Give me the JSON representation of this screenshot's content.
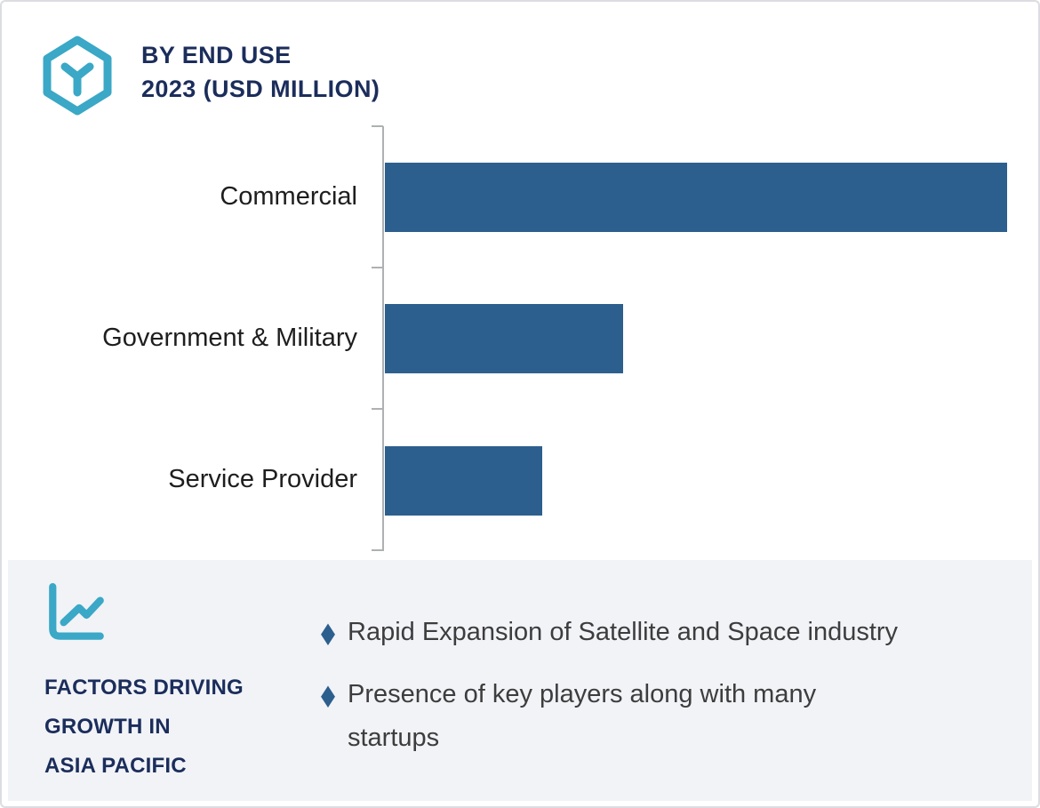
{
  "header": {
    "title_line1": "BY END USE",
    "title_line2": "2023 (USD MILLION)"
  },
  "chart_data": {
    "type": "bar",
    "orientation": "horizontal",
    "title": "BY END USE 2023 (USD MILLION)",
    "categories": [
      "Commercial",
      "Government & Military",
      "Service Provider"
    ],
    "values_pct_of_max": [
      100,
      38.3,
      25.3
    ],
    "note": "no numeric axis or data labels shown; values estimated as percent of longest bar",
    "xlabel": "",
    "ylabel": "",
    "legend": false,
    "grid": false,
    "bar_color": "#2d5f8e"
  },
  "factors_panel": {
    "heading_lines": [
      "FACTORS DRIVING",
      "GROWTH IN",
      "ASIA PACIFIC"
    ],
    "items": [
      "Rapid Expansion of Satellite and Space industry",
      "Presence of key players along with many\nstartups"
    ]
  },
  "colors": {
    "bar": "#2d5f8e",
    "navy_text": "#1b2d5b",
    "teal_icon": "#3aa8c6",
    "panel_bg": "#f1f3f7",
    "bullet_diamond": "#2d5f8e",
    "body_text": "#3d3d3d",
    "axis": "#aeb0b2",
    "card_border": "#dcdde2"
  },
  "icons": {
    "logo": "hexagon-y-icon",
    "growth": "line-chart-icon",
    "bullet": "diamond-icon"
  }
}
